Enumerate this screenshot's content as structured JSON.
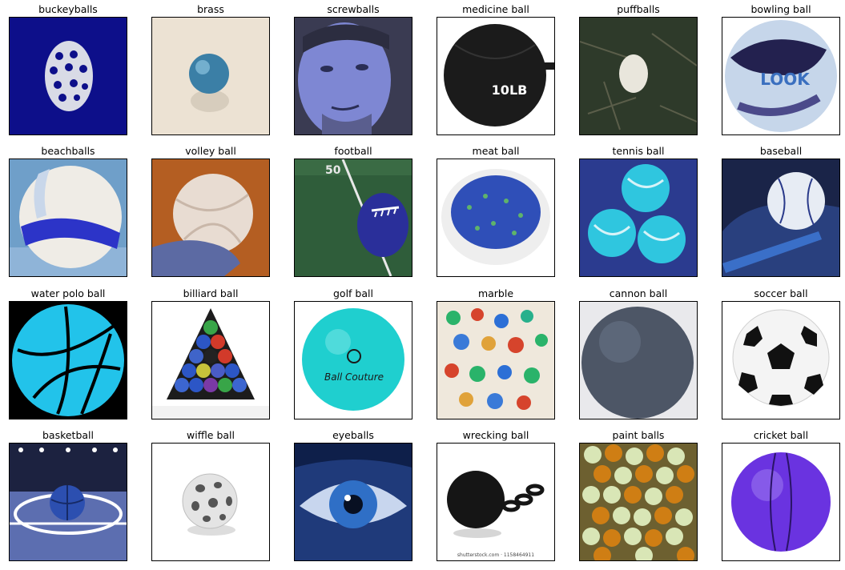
{
  "panels": [
    {
      "title": "buckeyballs"
    },
    {
      "title": "brass"
    },
    {
      "title": "screwballs"
    },
    {
      "title": "medicine ball"
    },
    {
      "title": "puffballs"
    },
    {
      "title": "bowling ball"
    },
    {
      "title": "beachballs"
    },
    {
      "title": "volley ball"
    },
    {
      "title": "football"
    },
    {
      "title": "meat ball"
    },
    {
      "title": "tennis ball"
    },
    {
      "title": "baseball"
    },
    {
      "title": "water polo ball"
    },
    {
      "title": "billiard ball"
    },
    {
      "title": "golf ball"
    },
    {
      "title": "marble"
    },
    {
      "title": "cannon ball"
    },
    {
      "title": "soccer ball"
    },
    {
      "title": "basketball"
    },
    {
      "title": "wiffle ball"
    },
    {
      "title": "eyeballs"
    },
    {
      "title": "wrecking ball"
    },
    {
      "title": "paint balls"
    },
    {
      "title": "cricket ball"
    }
  ],
  "image_text": {
    "medicine_ball_label": "10LB",
    "bowling_ball_logo": "LOOK",
    "golf_ball_brand": "Ball Couture",
    "wrecking_ball_credit": "shutterstock.com · 1158464911"
  }
}
